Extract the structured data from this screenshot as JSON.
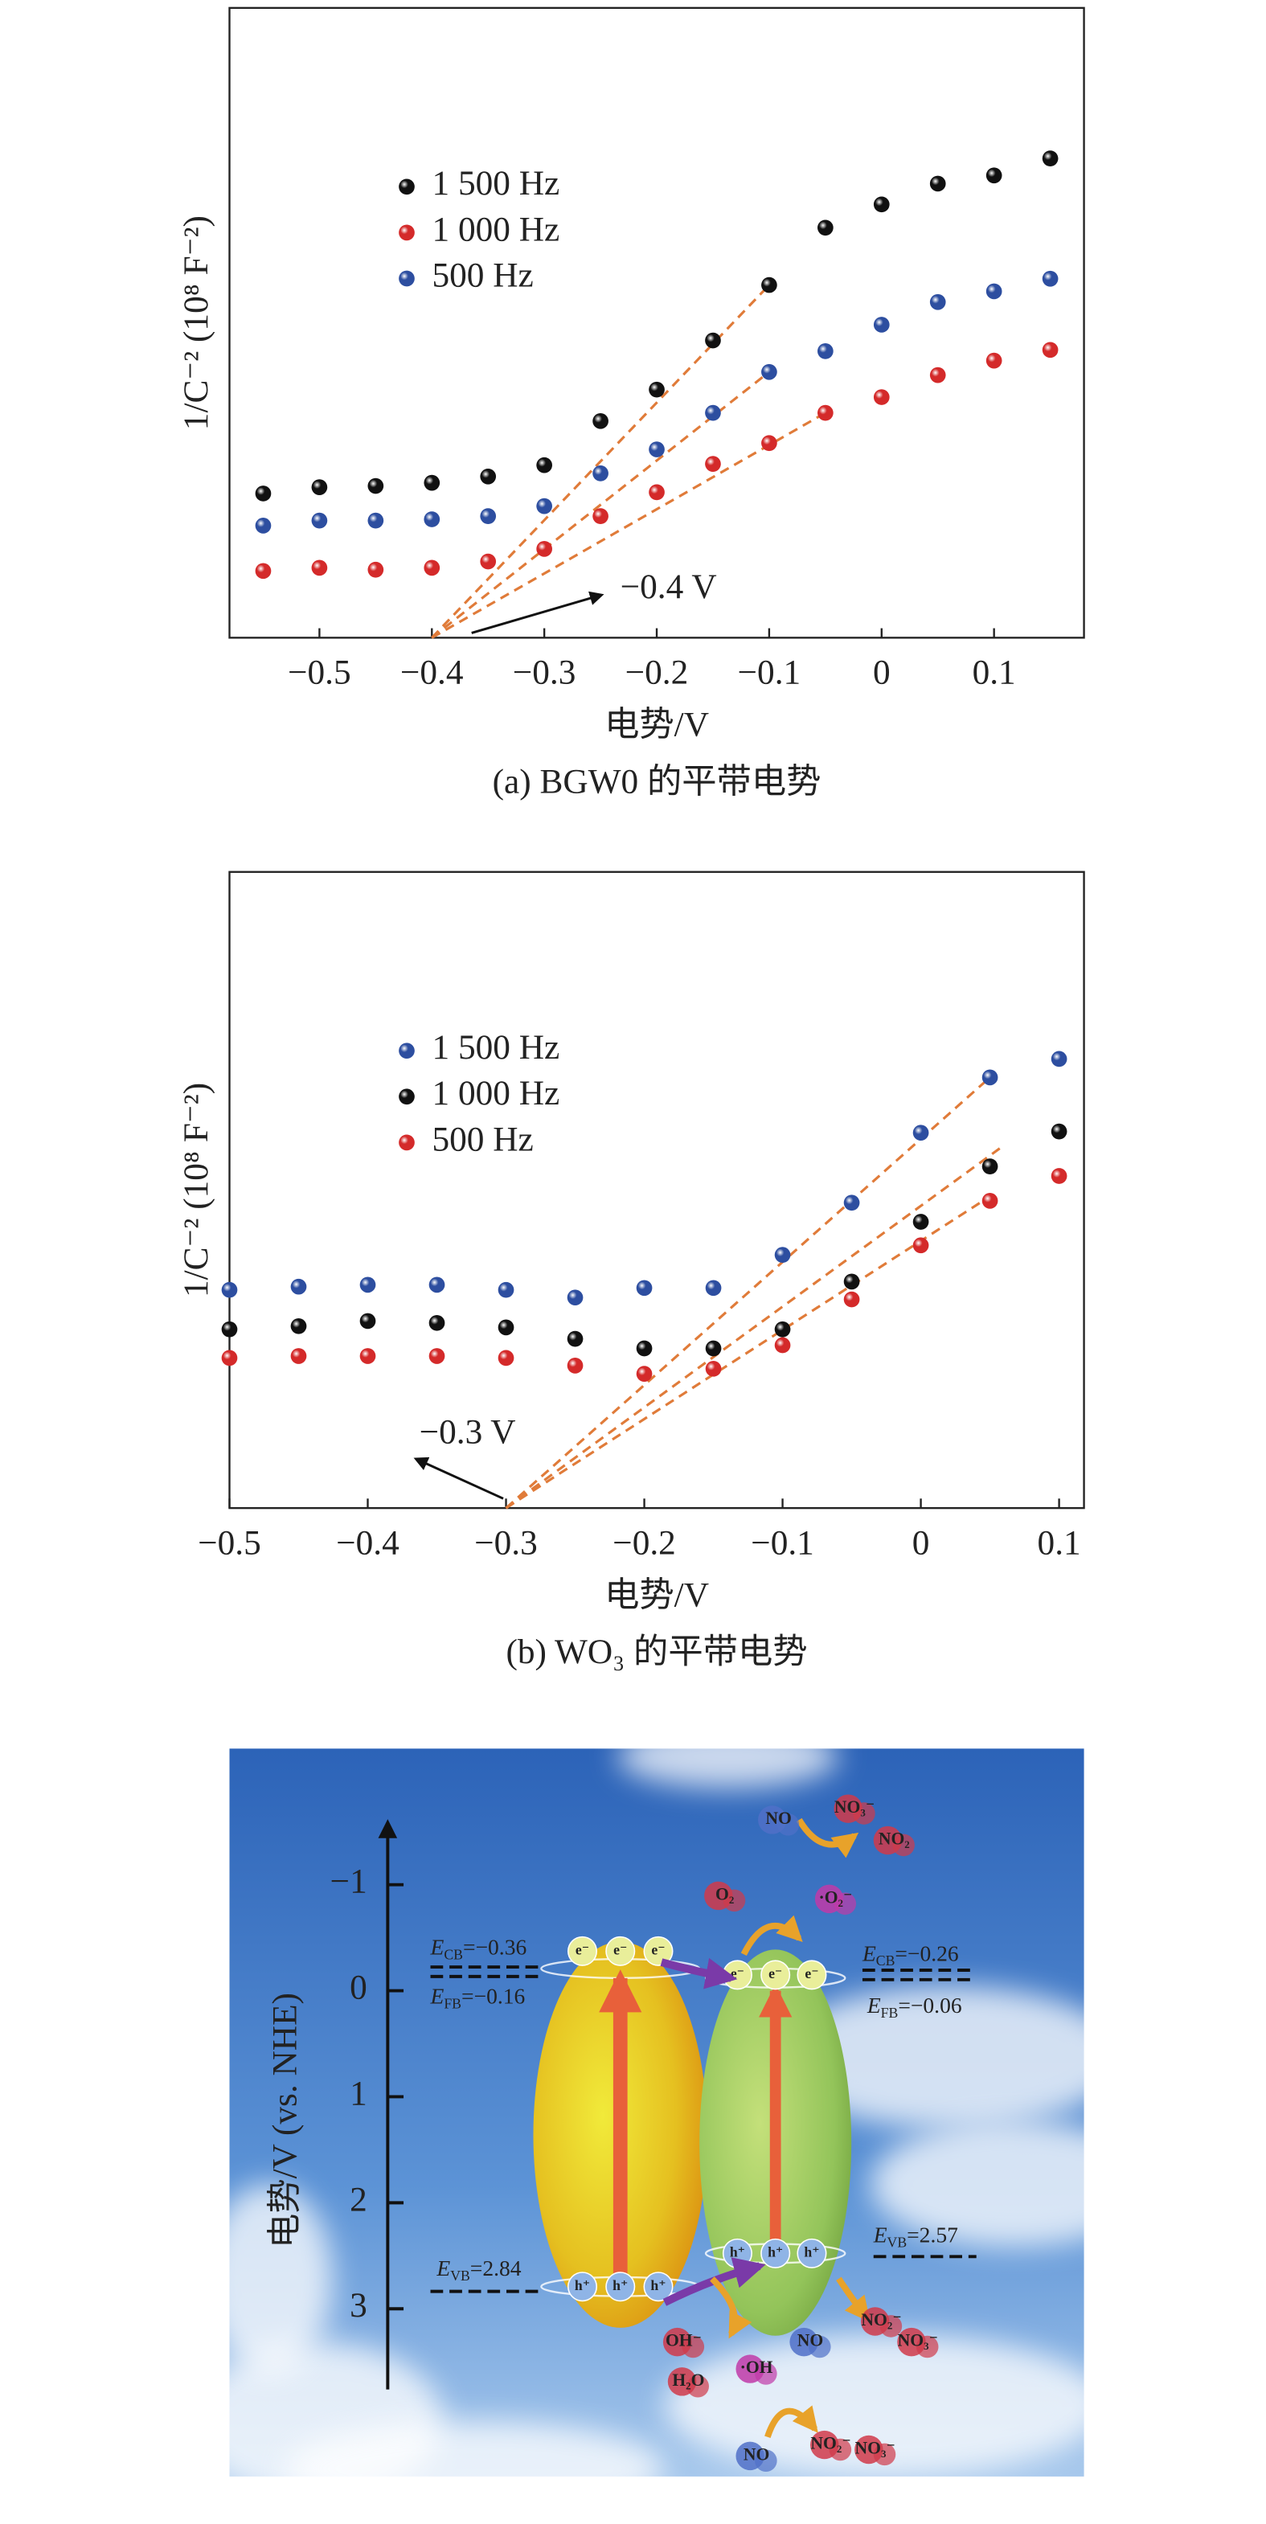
{
  "chart_data": [
    {
      "type": "scatter",
      "caption": "(a) BGW0 的平带电势",
      "xlabel": "电势/V",
      "ylabel": "1/C⁻² (10⁸ F⁻²)",
      "x": [
        -0.55,
        -0.5,
        -0.45,
        -0.4,
        -0.35,
        -0.3,
        -0.25,
        -0.2,
        -0.15,
        -0.1,
        -0.05,
        0,
        0.05,
        0.1,
        0.15
      ],
      "series": [
        {
          "name": "1 500 Hz",
          "color": "#111111",
          "values": [
            2.29,
            2.39,
            2.41,
            2.46,
            2.56,
            2.74,
            3.44,
            3.94,
            4.72,
            5.6,
            6.51,
            6.88,
            7.21,
            7.34,
            7.61
          ]
        },
        {
          "name": "1 000 Hz",
          "color": "#d42a2a",
          "values": [
            1.06,
            1.11,
            1.08,
            1.11,
            1.21,
            1.41,
            1.93,
            2.31,
            2.76,
            3.09,
            3.57,
            3.82,
            4.17,
            4.4,
            4.57
          ]
        },
        {
          "name": "500 Hz",
          "color": "#2d4ea0",
          "values": [
            1.78,
            1.86,
            1.86,
            1.88,
            1.93,
            2.09,
            2.61,
            2.99,
            3.57,
            4.22,
            4.55,
            4.97,
            5.33,
            5.5,
            5.7
          ]
        }
      ],
      "fit_lines": [
        {
          "x": [
            -0.4,
            -0.1
          ],
          "values": [
            0,
            5.6
          ]
        },
        {
          "x": [
            -0.4,
            -0.1
          ],
          "values": [
            0,
            4.22
          ]
        },
        {
          "x": [
            -0.4,
            -0.05
          ],
          "values": [
            0,
            3.57
          ]
        }
      ],
      "fit_color": "#e07b39",
      "annotation": "−0.4 V",
      "xlim": [
        -0.58,
        0.18
      ],
      "ylim": [
        0,
        10
      ],
      "xticks": [
        {
          "value": -0.5,
          "label": "−0.5"
        },
        {
          "value": -0.4,
          "label": "−0.4"
        },
        {
          "value": -0.3,
          "label": "−0.3"
        },
        {
          "value": -0.2,
          "label": "−0.2"
        },
        {
          "value": -0.1,
          "label": "−0.1"
        },
        0,
        0.1
      ],
      "legend": "upper left",
      "grid": false
    },
    {
      "type": "scatter",
      "caption": "(b) WO₃ 的平带电势",
      "xlabel": "电势/V",
      "ylabel": "1/C⁻² (10⁸ F⁻²)",
      "x": [
        -0.5,
        -0.45,
        -0.4,
        -0.35,
        -0.3,
        -0.25,
        -0.2,
        -0.15,
        -0.1,
        -0.05,
        0,
        0.05,
        0.1
      ],
      "series": [
        {
          "name": "1 500 Hz",
          "color": "#2d4ea0",
          "values": [
            3.43,
            3.48,
            3.51,
            3.51,
            3.43,
            3.31,
            3.46,
            3.46,
            3.98,
            4.8,
            5.9,
            6.77,
            7.06
          ]
        },
        {
          "name": "1 000 Hz",
          "color": "#111111",
          "values": [
            2.81,
            2.86,
            2.94,
            2.91,
            2.84,
            2.66,
            2.51,
            2.51,
            2.81,
            3.56,
            4.5,
            5.37,
            5.92
          ]
        },
        {
          "name": "500 Hz",
          "color": "#d42a2a",
          "values": [
            2.36,
            2.39,
            2.39,
            2.39,
            2.36,
            2.24,
            2.11,
            2.19,
            2.56,
            3.28,
            4.13,
            4.83,
            5.22
          ]
        }
      ],
      "fit_lines": [
        {
          "x": [
            -0.3,
            0.05
          ],
          "values": [
            0,
            6.77
          ]
        },
        {
          "x": [
            -0.3,
            0.06
          ],
          "values": [
            0,
            5.7
          ]
        },
        {
          "x": [
            -0.3,
            0.05
          ],
          "values": [
            0,
            4.9
          ]
        }
      ],
      "fit_color": "#e07b39",
      "annotation": "−0.3 V",
      "xlim": [
        -0.5,
        0.118
      ],
      "ylim": [
        0,
        10
      ],
      "xticks": [
        {
          "value": -0.5,
          "label": "−0.5"
        },
        {
          "value": -0.4,
          "label": "−0.4"
        },
        {
          "value": -0.3,
          "label": "−0.3"
        },
        {
          "value": -0.2,
          "label": "−0.2"
        },
        {
          "value": -0.1,
          "label": "−0.1"
        },
        0,
        0.1
      ],
      "legend": "upper left",
      "grid": false
    }
  ],
  "diagram": {
    "axis_label": "电势/V (vs. NHE)",
    "ticks": [
      {
        "value": -1,
        "label": "−1"
      },
      0,
      1,
      2,
      3
    ],
    "levels": [
      {
        "symbol": "E",
        "sub": "CB",
        "text": "=−0.36"
      },
      {
        "symbol": "E",
        "sub": "FB",
        "text": "=−0.16"
      },
      {
        "symbol": "E",
        "sub": "VB",
        "text": "=2.84"
      },
      {
        "symbol": "E",
        "sub": "CB",
        "text": "=−0.26"
      },
      {
        "symbol": "E",
        "sub": "FB",
        "text": "=−0.06"
      },
      {
        "symbol": "E",
        "sub": "VB",
        "text": "=2.57"
      }
    ],
    "electron": "e⁻",
    "hole": "h⁺",
    "species": [
      "NO",
      "NO₃⁻",
      "NO₂",
      "O₂",
      "·O₂⁻",
      "OH⁻",
      "H₂O",
      "·OH",
      "NO",
      "NO₂⁻",
      "NO₃⁻",
      "NO",
      "NO₂⁻",
      "NO₃⁻"
    ]
  }
}
